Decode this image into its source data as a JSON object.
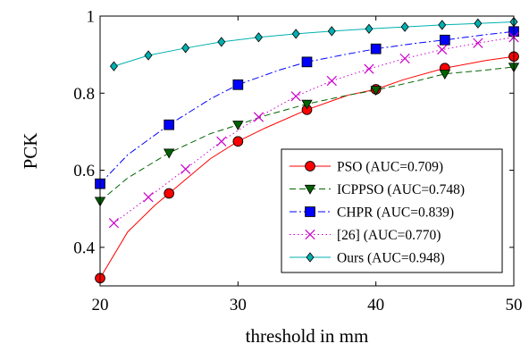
{
  "chart_data": {
    "type": "line",
    "title": "",
    "xlabel": "threshold in mm",
    "ylabel": "PCK",
    "xlim": [
      20,
      50
    ],
    "ylim": [
      0.3,
      1.0
    ],
    "xticks": [
      20,
      30,
      40,
      50
    ],
    "yticks": [
      0.4,
      0.6,
      0.8,
      1
    ],
    "xtick_labels": [
      "20",
      "30",
      "40",
      "50"
    ],
    "ytick_labels": [
      "0.4",
      "0.6",
      "0.8",
      "1"
    ],
    "grid": false,
    "legend_position": "bottom-right",
    "series": [
      {
        "name": "PSO (AUC=0.709)",
        "color": "#ff0000",
        "line_style": "solid",
        "marker": "circle",
        "marker_fill": "#ff0000",
        "x": [
          20,
          25,
          30,
          35,
          40,
          45,
          50
        ],
        "y": [
          0.32,
          0.54,
          0.675,
          0.757,
          0.81,
          0.865,
          0.895
        ],
        "curve_points": [
          [
            20,
            0.32
          ],
          [
            22,
            0.44
          ],
          [
            24,
            0.51
          ],
          [
            25,
            0.54
          ],
          [
            26,
            0.57
          ],
          [
            28,
            0.63
          ],
          [
            30,
            0.675
          ],
          [
            32,
            0.71
          ],
          [
            35,
            0.757
          ],
          [
            38,
            0.795
          ],
          [
            40,
            0.81
          ],
          [
            42,
            0.835
          ],
          [
            45,
            0.865
          ],
          [
            48,
            0.885
          ],
          [
            50,
            0.895
          ]
        ]
      },
      {
        "name": "ICPPSO (AUC=0.748)",
        "color": "#006400",
        "line_style": "dashed",
        "marker": "triangle-down",
        "marker_fill": "#006400",
        "x": [
          20,
          25,
          30,
          35,
          40,
          45,
          50
        ],
        "y": [
          0.52,
          0.645,
          0.718,
          0.772,
          0.808,
          0.85,
          0.868
        ],
        "curve_points": [
          [
            20,
            0.52
          ],
          [
            22,
            0.58
          ],
          [
            25,
            0.645
          ],
          [
            28,
            0.695
          ],
          [
            30,
            0.718
          ],
          [
            32,
            0.742
          ],
          [
            35,
            0.772
          ],
          [
            38,
            0.795
          ],
          [
            40,
            0.808
          ],
          [
            43,
            0.832
          ],
          [
            45,
            0.85
          ],
          [
            48,
            0.86
          ],
          [
            50,
            0.868
          ]
        ]
      },
      {
        "name": "CHPR (AUC=0.839)",
        "color": "#0000ff",
        "line_style": "dashdot",
        "marker": "square",
        "marker_fill": "#0000ff",
        "x": [
          20,
          25,
          30,
          35,
          40,
          45,
          50
        ],
        "y": [
          0.565,
          0.718,
          0.822,
          0.881,
          0.915,
          0.938,
          0.96
        ],
        "curve_points": [
          [
            20,
            0.565
          ],
          [
            22,
            0.64
          ],
          [
            25,
            0.718
          ],
          [
            28,
            0.785
          ],
          [
            30,
            0.822
          ],
          [
            33,
            0.86
          ],
          [
            35,
            0.881
          ],
          [
            38,
            0.902
          ],
          [
            40,
            0.915
          ],
          [
            43,
            0.93
          ],
          [
            45,
            0.938
          ],
          [
            48,
            0.952
          ],
          [
            50,
            0.96
          ]
        ]
      },
      {
        "name": "[26] (AUC=0.770)",
        "color": "#cc00cc",
        "line_style": "dotted",
        "marker": "cross",
        "marker_fill": "none",
        "x": [
          21,
          23.5,
          26.2,
          28.8,
          31.5,
          34.2,
          36.8,
          39.5,
          42.1,
          44.8,
          47.4,
          50
        ],
        "y": [
          0.463,
          0.53,
          0.603,
          0.675,
          0.738,
          0.792,
          0.832,
          0.863,
          0.89,
          0.913,
          0.93,
          0.945
        ]
      },
      {
        "name": "Ours (AUC=0.948)",
        "color": "#00b0b0",
        "line_style": "solid",
        "marker": "diamond",
        "marker_fill": "#00b0b0",
        "x": [
          21,
          23.5,
          26.2,
          28.8,
          31.5,
          34.2,
          36.8,
          39.5,
          42.1,
          44.8,
          47.4,
          50
        ],
        "y": [
          0.87,
          0.898,
          0.917,
          0.933,
          0.945,
          0.954,
          0.961,
          0.967,
          0.972,
          0.977,
          0.981,
          0.985
        ]
      }
    ]
  }
}
